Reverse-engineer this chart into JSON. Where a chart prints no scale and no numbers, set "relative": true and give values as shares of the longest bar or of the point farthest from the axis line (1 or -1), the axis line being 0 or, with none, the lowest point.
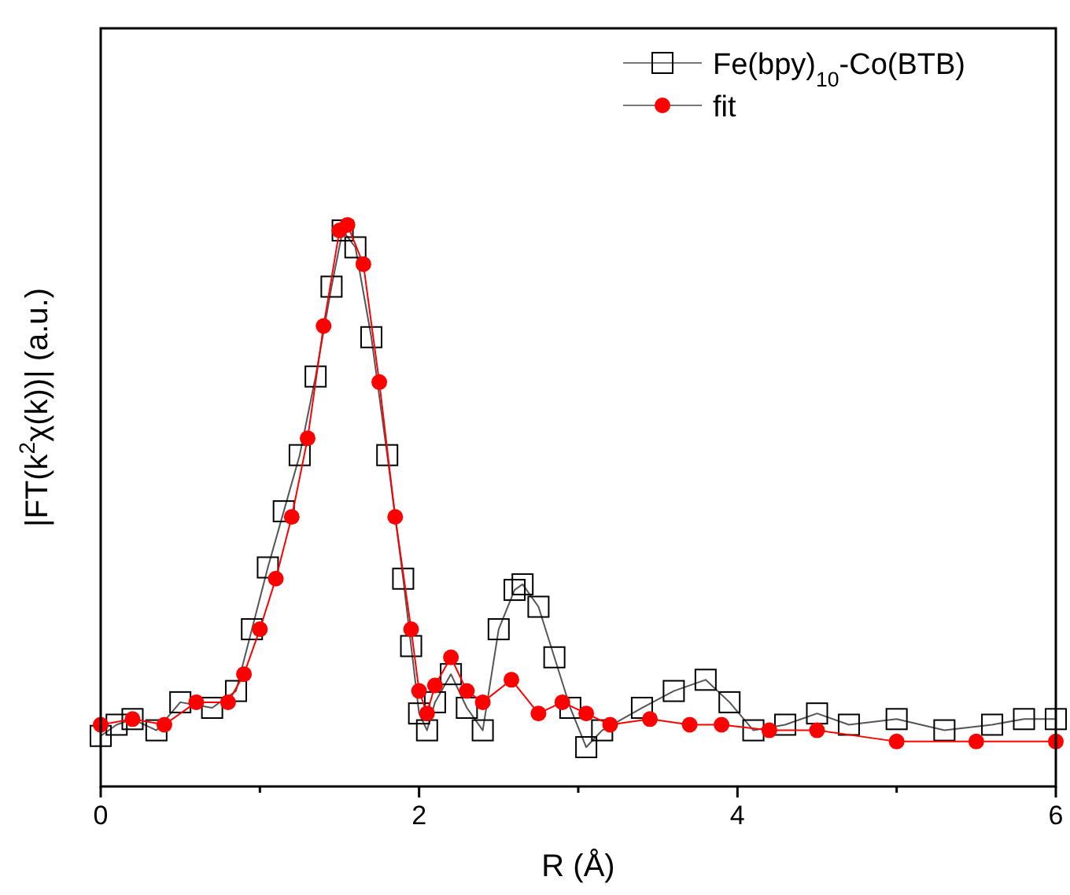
{
  "chart_data": {
    "type": "line",
    "relative": true,
    "xlabel": "R (Å)",
    "ylabel": "|FT(k$^{2}$χ(k))| (a.u.)",
    "xlim": [
      0,
      6
    ],
    "xticks": [
      0,
      {
        "value": 1,
        "label": null
      },
      2,
      {
        "value": 3,
        "label": null
      },
      4,
      {
        "value": 5,
        "label": null
      },
      6
    ],
    "legend": "top right",
    "grid": false,
    "line_style": "solid",
    "series": [
      {
        "name": "Fe(bpy)$_{10}$-Co(BTB)",
        "color": "#000000",
        "marker": "square",
        "x": [
          0,
          0.1,
          0.2,
          0.35,
          0.5,
          0.7,
          0.85,
          0.95,
          1.05,
          1.15,
          1.25,
          1.35,
          1.45,
          1.52,
          1.6,
          1.7,
          1.8,
          1.9,
          1.95,
          2.0,
          2.05,
          2.1,
          2.2,
          2.3,
          2.4,
          2.5,
          2.6,
          2.65,
          2.75,
          2.85,
          2.95,
          3.05,
          3.15,
          3.4,
          3.6,
          3.8,
          3.95,
          4.1,
          4.3,
          4.5,
          4.7,
          5.0,
          5.3,
          5.6,
          5.8,
          6.0
        ],
        "values": [
          0.09,
          0.11,
          0.12,
          0.1,
          0.15,
          0.14,
          0.17,
          0.28,
          0.39,
          0.49,
          0.59,
          0.73,
          0.89,
          0.99,
          0.96,
          0.8,
          0.59,
          0.37,
          0.25,
          0.13,
          0.1,
          0.15,
          0.2,
          0.14,
          0.1,
          0.28,
          0.35,
          0.36,
          0.32,
          0.23,
          0.14,
          0.07,
          0.1,
          0.14,
          0.17,
          0.19,
          0.15,
          0.1,
          0.11,
          0.13,
          0.11,
          0.12,
          0.1,
          0.11,
          0.12,
          0.12
        ]
      },
      {
        "name": "fit",
        "color": "#ff0000",
        "marker": "circle",
        "x": [
          0,
          0.2,
          0.4,
          0.6,
          0.8,
          0.9,
          1.0,
          1.1,
          1.2,
          1.3,
          1.4,
          1.5,
          1.55,
          1.65,
          1.75,
          1.85,
          1.95,
          2.0,
          2.05,
          2.1,
          2.2,
          2.3,
          2.4,
          2.58,
          2.75,
          2.9,
          3.05,
          3.2,
          3.45,
          3.7,
          3.9,
          4.2,
          4.5,
          5.0,
          5.5,
          6.0
        ],
        "values": [
          0.11,
          0.12,
          0.11,
          0.15,
          0.15,
          0.2,
          0.28,
          0.37,
          0.48,
          0.62,
          0.82,
          0.99,
          1,
          0.93,
          0.72,
          0.48,
          0.28,
          0.17,
          0.13,
          0.18,
          0.23,
          0.17,
          0.15,
          0.19,
          0.13,
          0.15,
          0.13,
          0.11,
          0.12,
          0.11,
          0.11,
          0.1,
          0.1,
          0.08,
          0.08,
          0.08
        ]
      }
    ]
  }
}
